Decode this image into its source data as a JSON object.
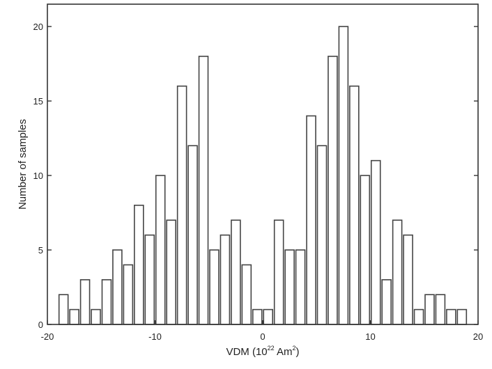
{
  "chart_data": {
    "type": "bar",
    "subtype": "histogram",
    "xlabel_main": "VDM (10",
    "xlabel_exp1": "22",
    "xlabel_unit": " Am",
    "xlabel_exp2": "2",
    "xlabel_close": ")",
    "ylabel": "Number of samples",
    "xlim": [
      -20,
      20
    ],
    "ylim": [
      0,
      21.5
    ],
    "bin_width": 1,
    "xticks": [
      -20,
      -10,
      0,
      10,
      20
    ],
    "yticks": [
      0,
      5,
      10,
      15,
      20
    ],
    "xtick_labels": [
      "-20",
      "-10",
      "0",
      "10",
      "20"
    ],
    "ytick_labels": [
      "0",
      "5",
      "10",
      "15",
      "20"
    ],
    "bin_centers": [
      -18.5,
      -17.5,
      -16.5,
      -15.5,
      -14.5,
      -13.5,
      -12.5,
      -11.5,
      -10.5,
      -9.5,
      -8.5,
      -7.5,
      -6.5,
      -5.5,
      -4.5,
      -3.5,
      -2.5,
      -1.5,
      -0.5,
      0.5,
      1.5,
      2.5,
      3.5,
      4.5,
      5.5,
      6.5,
      7.5,
      8.5,
      9.5,
      10.5,
      11.5,
      12.5,
      13.5,
      14.5,
      15.5,
      16.5,
      17.5,
      18.5
    ],
    "values": [
      2,
      1,
      3,
      1,
      3,
      5,
      4,
      8,
      6,
      10,
      7,
      16,
      12,
      18,
      5,
      6,
      7,
      4,
      1,
      1,
      7,
      5,
      5,
      14,
      12,
      18,
      20,
      16,
      10,
      11,
      3,
      7,
      6,
      1,
      2,
      2,
      1,
      1
    ],
    "grid": false,
    "colors": {
      "bar_fill": "#ffffff",
      "bar_edge": "#444444",
      "axis": "#333333"
    }
  }
}
